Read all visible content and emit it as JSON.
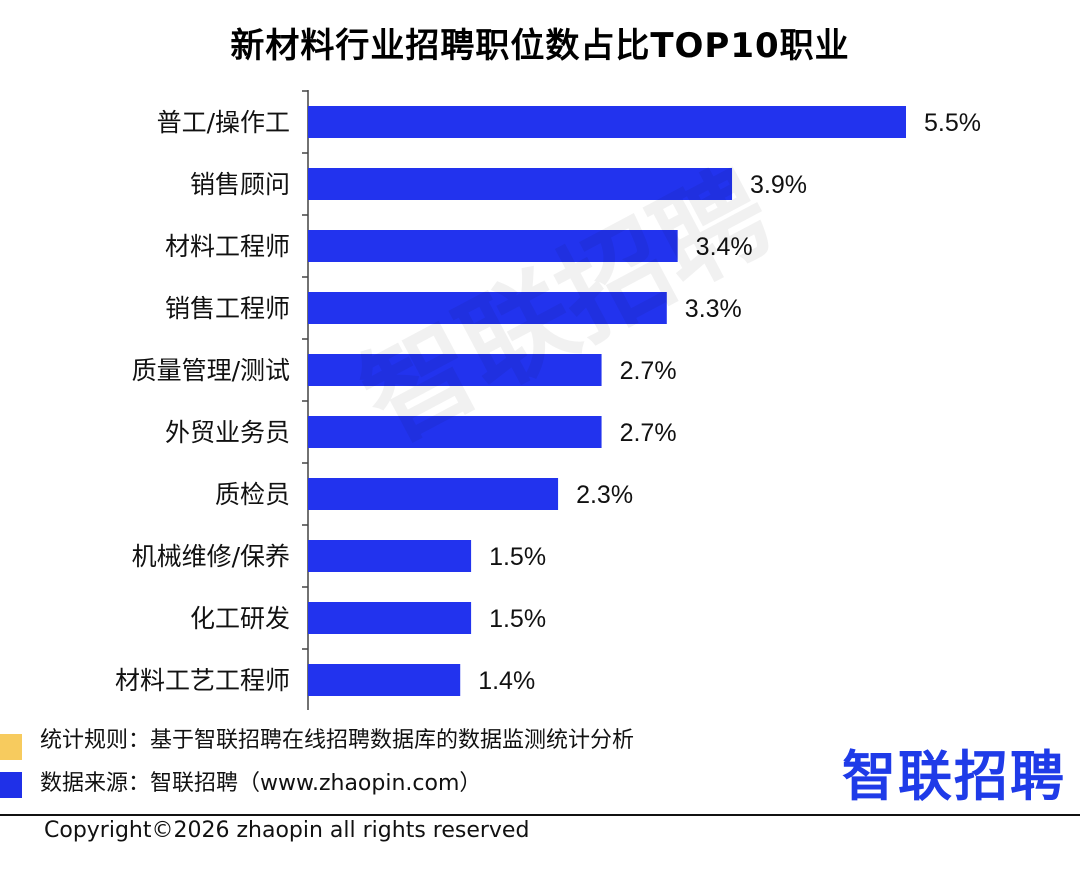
{
  "chart_data": {
    "type": "bar",
    "orientation": "horizontal",
    "title": "新材料行业招聘职位数占比TOP10职业",
    "categories": [
      "普工/操作工",
      "销售顾问",
      "材料工程师",
      "销售工程师",
      "质量管理/测试",
      "外贸业务员",
      "质检员",
      "机械维修/保养",
      "化工研发",
      "材料工艺工程师"
    ],
    "values": [
      5.5,
      3.9,
      3.4,
      3.3,
      2.7,
      2.7,
      2.3,
      1.5,
      1.5,
      1.4
    ],
    "value_labels": [
      "5.5%",
      "3.9%",
      "3.4%",
      "3.3%",
      "2.7%",
      "2.7%",
      "2.3%",
      "1.5%",
      "1.5%",
      "1.4%"
    ],
    "unit": "%",
    "xlim": [
      0,
      5.5
    ],
    "grid": false,
    "bar_color": "#2233EE"
  },
  "watermark": "智联招聘",
  "notes": {
    "rule": "统计规则：基于智联招聘在线招聘数据库的数据监测统计分析",
    "source": "数据来源：智联招聘（www.zhaopin.com）"
  },
  "legend_colors": {
    "rule": "#F7CB5E",
    "source": "#1F30E8"
  },
  "logo": {
    "text": "智联招聘",
    "color": "#1F3BE8"
  },
  "copyright": "Copyright©2026 zhaopin all rights reserved"
}
